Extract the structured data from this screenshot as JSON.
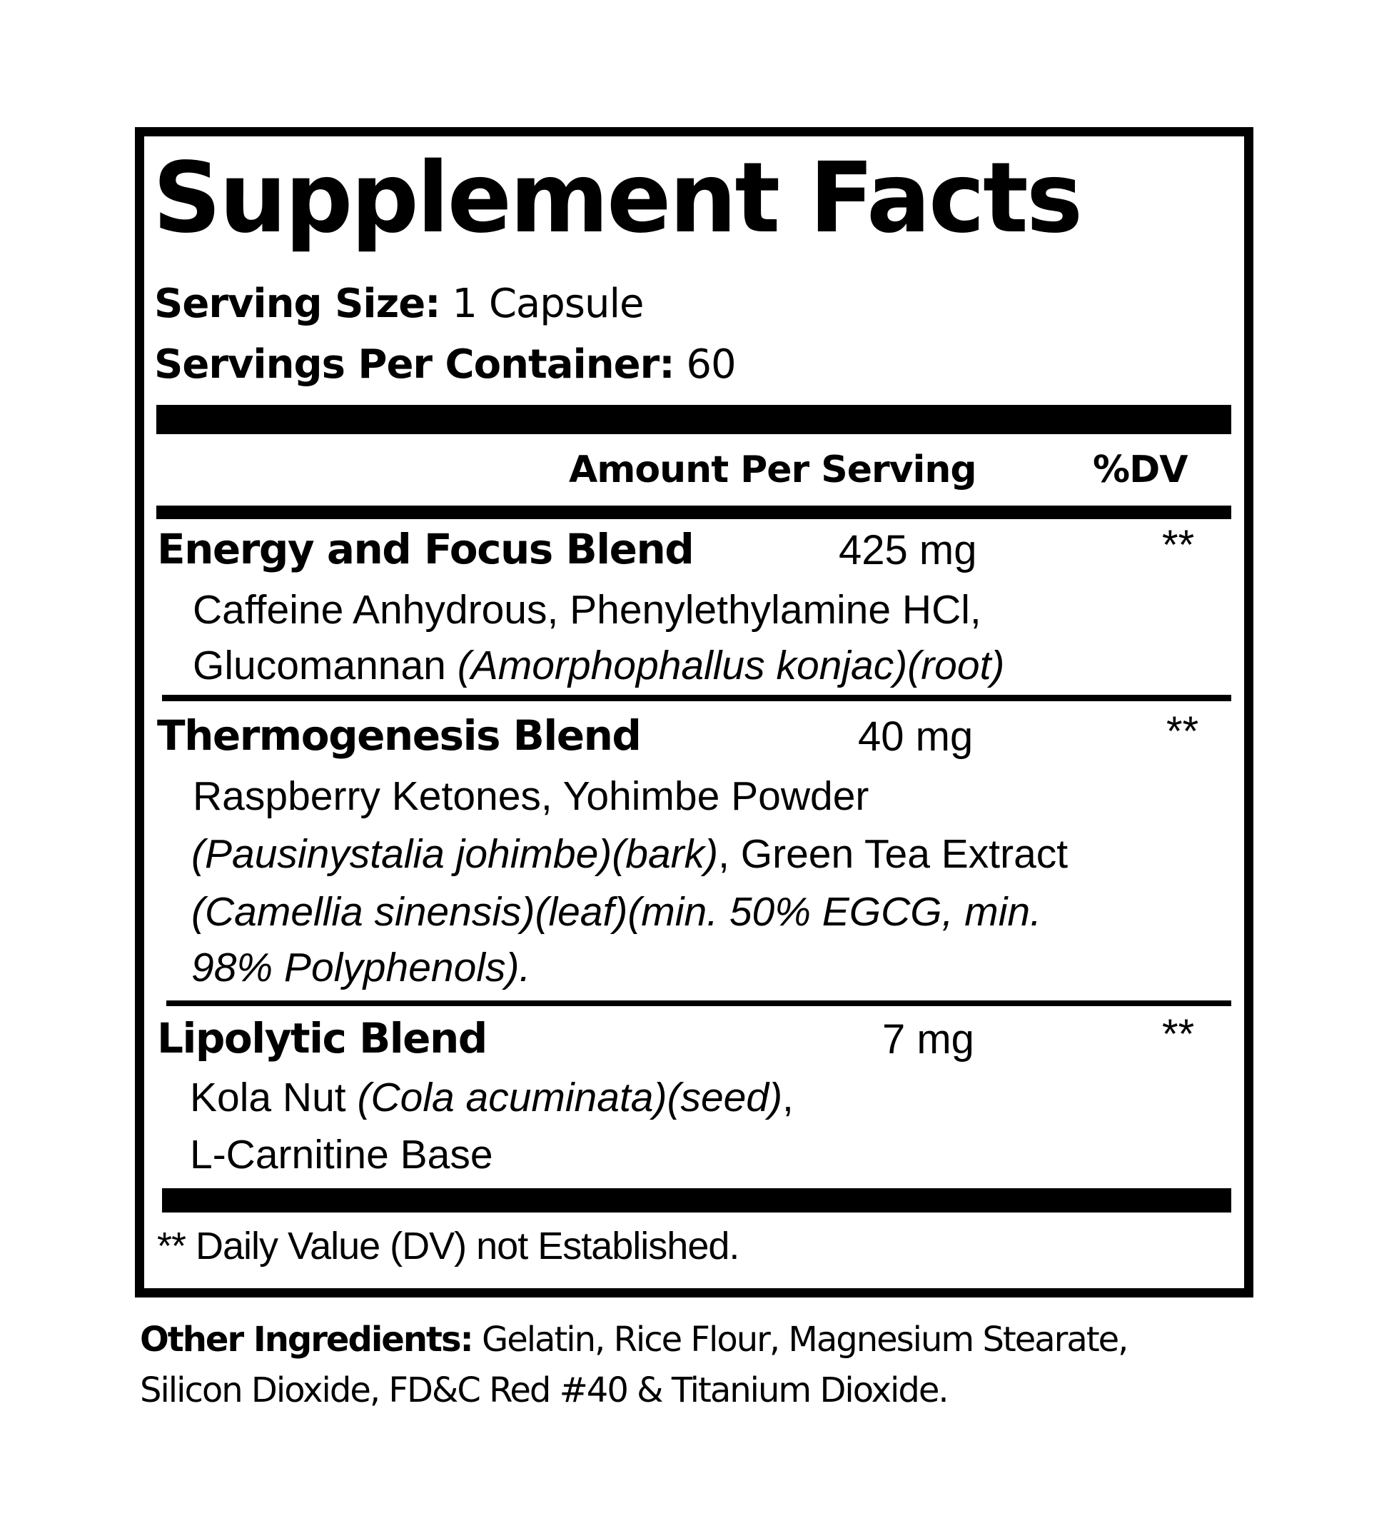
{
  "title": "Supplement Facts",
  "serving_size": {
    "label": "Serving Size:",
    "value": "1 Capsule"
  },
  "servings_per_container": {
    "label": "Servings Per Container:",
    "value": "60"
  },
  "header": {
    "amount": "Amount Per Serving",
    "dv": "%DV"
  },
  "blends": [
    {
      "name": "Energy and Focus Blend",
      "amount": "425 mg",
      "dv": "**",
      "lines": [
        {
          "plain": "Caffeine Anhydrous, Phenylethylamine HCl,"
        },
        {
          "plain": "Glucomannan ",
          "italic": "(Amorphophallus konjac)(root)"
        }
      ]
    },
    {
      "name": "Thermogenesis Blend",
      "amount": "40 mg",
      "dv": "**",
      "lines": [
        {
          "plain": "Raspberry Ketones, Yohimbe Powder"
        },
        {
          "italic": "(Pausinystalia johimbe)(bark)",
          "plain_after": ", Green Tea Extract"
        },
        {
          "italic": "(Camellia sinensis)(leaf)(min. 50% EGCG, min."
        },
        {
          "italic": "98% Polyphenols)."
        }
      ]
    },
    {
      "name": "Lipolytic Blend",
      "amount": "7 mg",
      "dv": "**",
      "lines": [
        {
          "plain": "Kola Nut ",
          "italic": "(Cola acuminata)(seed)",
          "plain_after": ","
        },
        {
          "plain": "L-Carnitine Base"
        }
      ]
    }
  ],
  "footnote": "** Daily Value (DV) not Established.",
  "other_ingredients": {
    "label": "Other Ingredients:",
    "line1": " Gelatin, Rice Flour, Magnesium Stearate,",
    "line2": "Silicon Dioxide, FD&C Red #40 & Titanium Dioxide."
  }
}
